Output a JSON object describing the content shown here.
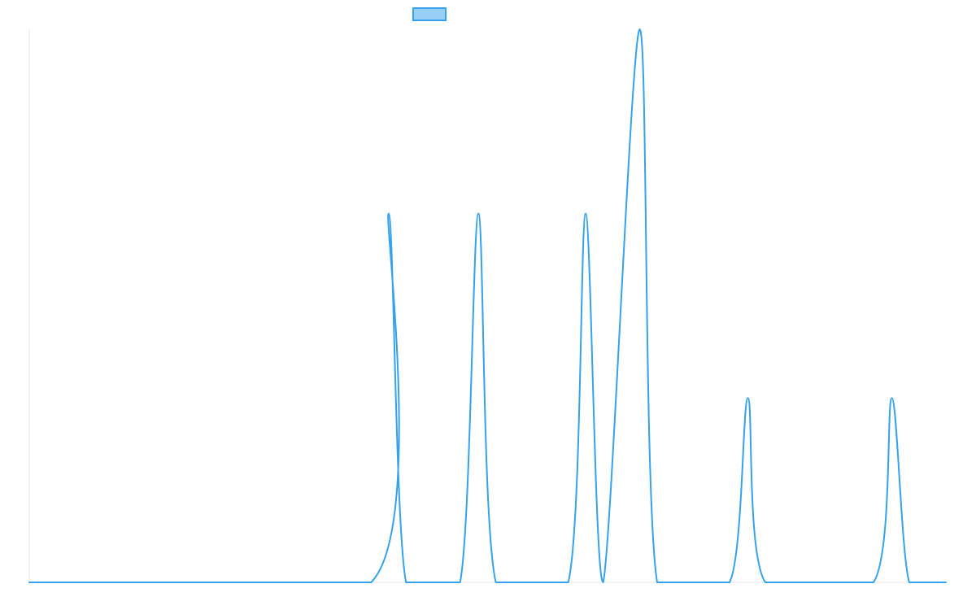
{
  "chart_data": {
    "type": "area",
    "title": "",
    "subtitle": "",
    "xlabel": "",
    "ylabel": "",
    "grid": false,
    "legend": {
      "placement": "top-center",
      "show_label": false
    },
    "colors": {
      "series_line": "#36a2eb",
      "series_fill": "#9ad0f5",
      "axis": "#e5e5e5"
    },
    "x_domain": [
      0,
      100
    ],
    "y_domain": [
      0,
      300
    ],
    "series": [
      {
        "points": [
          [
            0.0,
            0
          ],
          [
            37.3,
            0
          ],
          [
            39.2,
            200
          ],
          [
            41.1,
            0
          ],
          [
            47.0,
            0
          ],
          [
            49.0,
            200
          ],
          [
            50.9,
            0
          ],
          [
            58.8,
            0
          ],
          [
            60.7,
            200
          ],
          [
            62.6,
            0
          ],
          [
            66.6,
            300
          ],
          [
            68.5,
            0
          ],
          [
            76.4,
            0
          ],
          [
            78.4,
            100
          ],
          [
            80.3,
            0
          ],
          [
            92.1,
            0
          ],
          [
            94.1,
            100
          ],
          [
            96.0,
            0
          ],
          [
            100.0,
            0
          ]
        ]
      }
    ]
  }
}
